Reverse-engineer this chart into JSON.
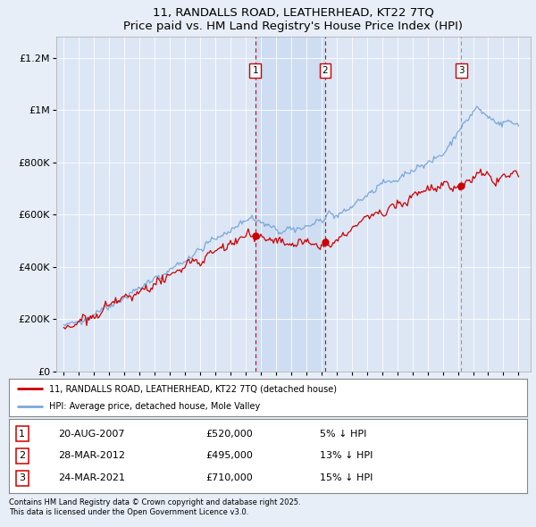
{
  "title": "11, RANDALLS ROAD, LEATHERHEAD, KT22 7TQ",
  "subtitle": "Price paid vs. HM Land Registry's House Price Index (HPI)",
  "background_color": "#e8eef8",
  "plot_bg_color": "#dce6f5",
  "sale1": {
    "date": 2007.64,
    "price": 520000,
    "label": "1",
    "text": "20-AUG-2007",
    "pct": "5% ↓ HPI"
  },
  "sale2": {
    "date": 2012.24,
    "price": 495000,
    "label": "2",
    "text": "28-MAR-2012",
    "pct": "13% ↓ HPI"
  },
  "sale3": {
    "date": 2021.23,
    "price": 710000,
    "label": "3",
    "text": "24-MAR-2021",
    "pct": "15% ↓ HPI"
  },
  "ylabel_ticks": [
    "£0",
    "£200K",
    "£400K",
    "£600K",
    "£800K",
    "£1M",
    "£1.2M"
  ],
  "ytick_vals": [
    0,
    200000,
    400000,
    600000,
    800000,
    1000000,
    1200000
  ],
  "xmin": 1994.5,
  "xmax": 2025.8,
  "ymin": 0,
  "ymax": 1280000,
  "red_line_color": "#cc0000",
  "blue_line_color": "#7aa8d8",
  "shade_color": "#c5d8f0",
  "footer": "Contains HM Land Registry data © Crown copyright and database right 2025.\nThis data is licensed under the Open Government Licence v3.0.",
  "legend_red": "11, RANDALLS ROAD, LEATHERHEAD, KT22 7TQ (detached house)",
  "legend_blue": "HPI: Average price, detached house, Mole Valley",
  "rows": [
    [
      "1",
      "20-AUG-2007",
      "£520,000",
      "5% ↓ HPI"
    ],
    [
      "2",
      "28-MAR-2012",
      "£495,000",
      "13% ↓ HPI"
    ],
    [
      "3",
      "24-MAR-2021",
      "£710,000",
      "15% ↓ HPI"
    ]
  ]
}
